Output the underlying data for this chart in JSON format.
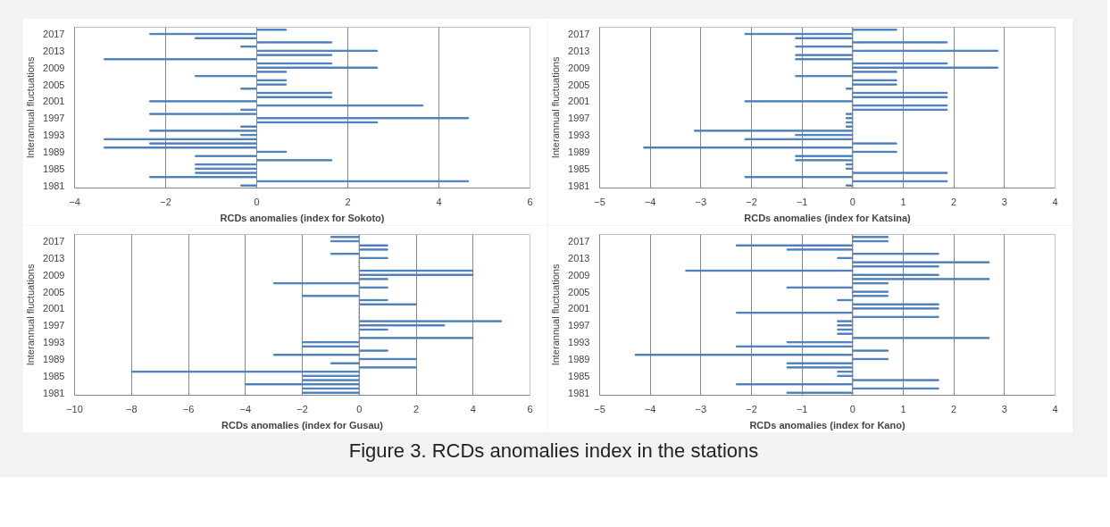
{
  "chart_data": [
    {
      "type": "bar",
      "orientation": "horizontal",
      "xlabel": "RCDs anomalies (index for Sokoto)",
      "ylabel": "Interannual fluctuations",
      "categories": [
        null,
        "2017",
        null,
        null,
        null,
        "2013",
        null,
        null,
        null,
        "2009",
        null,
        null,
        null,
        "2005",
        null,
        null,
        null,
        "2001",
        null,
        null,
        null,
        "1997",
        null,
        null,
        null,
        "1993",
        null,
        null,
        null,
        "1989",
        null,
        null,
        null,
        "1985",
        null,
        null,
        null,
        "1981"
      ],
      "series": [
        {
          "color": "#4a7ebb",
          "values": [
            0.65,
            -2.35,
            -1.35,
            1.65,
            -0.35,
            2.65,
            1.65,
            -3.35,
            1.65,
            2.65,
            0.65,
            -1.35,
            0.65,
            0.65,
            -0.35,
            1.65,
            1.65,
            -2.35,
            3.65,
            -0.35,
            -2.35,
            4.65,
            2.65,
            -0.35,
            -2.35,
            -0.35,
            -3.35,
            -2.35,
            -3.35,
            0.65,
            -1.35,
            1.65,
            -1.35,
            -1.35,
            -1.35,
            -2.35,
            4.65,
            -0.35
          ]
        }
      ],
      "xlim": [
        -4,
        6
      ],
      "xticks": [
        -4,
        -2,
        0,
        2,
        4,
        6
      ],
      "grid": "x"
    },
    {
      "type": "bar",
      "orientation": "horizontal",
      "xlabel": "RCDs anomalies (index for Katsina)",
      "ylabel": "Interannual fluctuations",
      "categories": [
        null,
        "2017",
        null,
        null,
        null,
        "2013",
        null,
        null,
        null,
        "2009",
        null,
        null,
        null,
        "2005",
        null,
        null,
        null,
        "2001",
        null,
        null,
        null,
        "1997",
        null,
        null,
        null,
        "1993",
        null,
        null,
        null,
        "1989",
        null,
        null,
        null,
        "1985",
        null,
        null,
        null,
        "1981"
      ],
      "series": [
        {
          "color": "#4a7ebb",
          "values": [
            0.87,
            -2.13,
            -1.13,
            1.87,
            -1.13,
            2.87,
            -1.13,
            -1.13,
            1.87,
            2.87,
            0.87,
            -1.13,
            0.87,
            0.87,
            -0.13,
            1.87,
            1.87,
            -2.13,
            1.87,
            1.87,
            -0.13,
            -0.13,
            -0.13,
            -0.13,
            -3.13,
            -1.13,
            -2.13,
            0.87,
            -4.13,
            0.87,
            -1.13,
            -1.13,
            -0.13,
            -0.13,
            1.87,
            -2.13,
            1.87,
            -0.13
          ]
        }
      ],
      "xlim": [
        -5,
        4
      ],
      "xticks": [
        -5,
        -4,
        -3,
        -2,
        -1,
        0,
        1,
        2,
        3,
        4
      ],
      "grid": "x"
    },
    {
      "type": "bar",
      "orientation": "horizontal",
      "xlabel": "RCDs anomalies (index for Gusau)",
      "ylabel": "Interannual fluctuations",
      "categories": [
        null,
        "2017",
        null,
        null,
        null,
        "2013",
        null,
        null,
        null,
        "2009",
        null,
        null,
        null,
        "2005",
        null,
        null,
        null,
        "2001",
        null,
        null,
        null,
        "1997",
        null,
        null,
        null,
        "1993",
        null,
        null,
        null,
        "1989",
        null,
        null,
        null,
        "1985",
        null,
        null,
        null,
        "1981"
      ],
      "series": [
        {
          "color": "#4a7ebb",
          "values": [
            -1,
            -1,
            1,
            1,
            -1,
            1,
            0,
            0,
            4,
            4,
            1,
            -3,
            1,
            0,
            -2,
            1,
            2,
            0,
            0,
            0,
            5,
            3,
            1,
            0,
            4,
            -2,
            -2,
            1,
            -3,
            2,
            -1,
            2,
            -8,
            -2,
            -2,
            -4,
            -2,
            -2
          ]
        }
      ],
      "xlim": [
        -10,
        6
      ],
      "xticks": [
        -10,
        -8,
        -6,
        -4,
        -2,
        0,
        2,
        4,
        6
      ],
      "grid": "x"
    },
    {
      "type": "bar",
      "orientation": "horizontal",
      "xlabel": "RCDs anomalies (index for Kano)",
      "ylabel": "Interannual fluctuations",
      "categories": [
        null,
        "2017",
        null,
        null,
        null,
        "2013",
        null,
        null,
        null,
        "2009",
        null,
        null,
        null,
        "2005",
        null,
        null,
        null,
        "2001",
        null,
        null,
        null,
        "1997",
        null,
        null,
        null,
        "1993",
        null,
        null,
        null,
        "1989",
        null,
        null,
        null,
        "1985",
        null,
        null,
        null,
        "1981"
      ],
      "series": [
        {
          "color": "#4a7ebb",
          "values": [
            0.7,
            0.7,
            -2.3,
            -1.3,
            1.7,
            -0.3,
            2.7,
            1.7,
            -3.3,
            1.7,
            2.7,
            0.7,
            -1.3,
            0.7,
            0.7,
            -0.3,
            1.7,
            1.7,
            -2.3,
            1.7,
            -0.3,
            -0.3,
            -0.3,
            -0.3,
            2.7,
            -1.3,
            -2.3,
            0.7,
            -4.3,
            0.7,
            -1.3,
            -1.3,
            -0.3,
            -0.3,
            1.7,
            -2.3,
            1.7,
            -1.3
          ]
        }
      ],
      "xlim": [
        -5,
        4
      ],
      "xticks": [
        -5,
        -4,
        -3,
        -2,
        -1,
        0,
        1,
        2,
        3,
        4
      ],
      "grid": "x",
      "annotations": [
        "Figure 3. RCDs anomalies index in the stations"
      ]
    }
  ]
}
